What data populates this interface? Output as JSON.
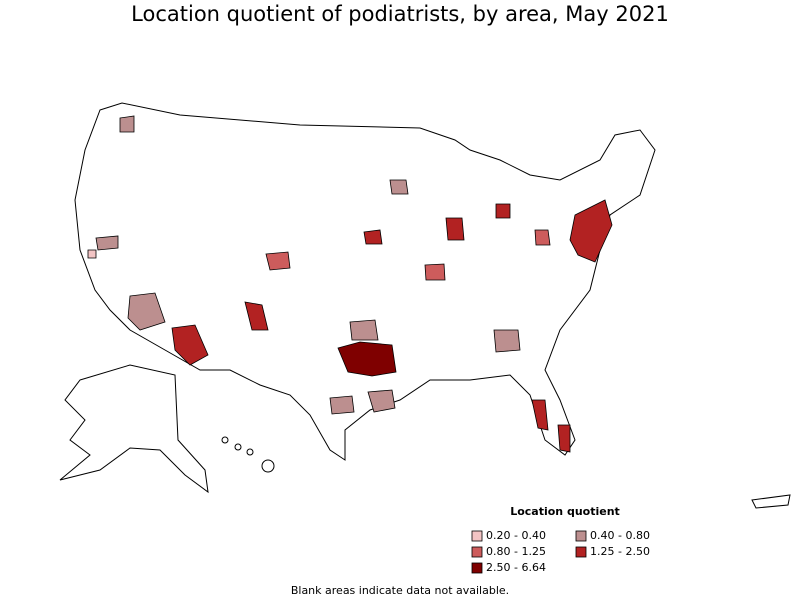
{
  "title": "Location quotient of podiatrists, by area, May 2021",
  "legend": {
    "title": "Location quotient",
    "items": [
      {
        "label": "0.20 - 0.40",
        "color": "#f2c4c4"
      },
      {
        "label": "0.40 - 0.80",
        "color": "#bc8f8f"
      },
      {
        "label": "0.80 - 1.25",
        "color": "#cd5c5c"
      },
      {
        "label": "1.25 - 2.50",
        "color": "#b22222"
      },
      {
        "label": "2.50 - 6.64",
        "color": "#7f0000"
      }
    ]
  },
  "note": "Blank areas indicate data not available."
}
